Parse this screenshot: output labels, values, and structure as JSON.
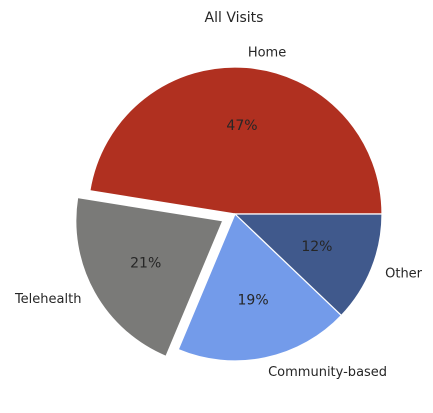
{
  "chart_data": {
    "type": "pie",
    "title": "All Visits",
    "categories": [
      "Home",
      "Telehealth",
      "Community-based",
      "Other"
    ],
    "values": [
      47,
      21,
      19,
      12
    ],
    "value_labels": [
      "47%",
      "21%",
      "19%",
      "12%"
    ],
    "colors": [
      "#b03020",
      "#7a7a78",
      "#739bea",
      "#40598c"
    ],
    "exploded": [
      "Telehealth"
    ],
    "start_angle_deg": 0,
    "direction": "counterclockwise"
  }
}
